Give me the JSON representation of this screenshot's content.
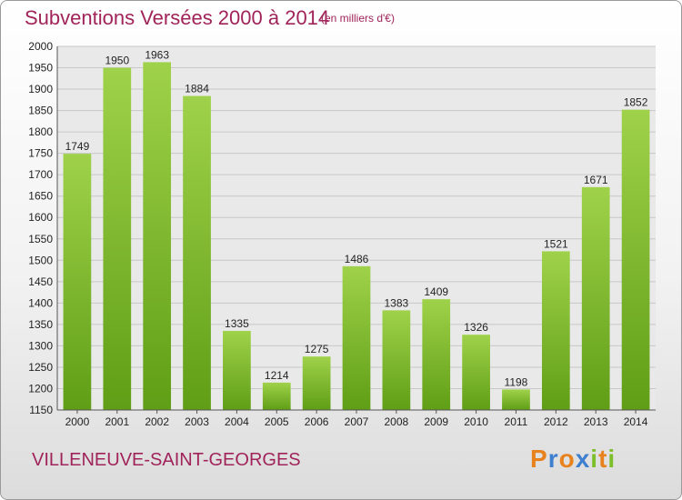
{
  "header": {
    "title": "Subventions Versées 2000 à 2014",
    "subtitle": "(en milliers d'€)"
  },
  "footer": {
    "commune": "VILLENEUVE-SAINT-GEORGES",
    "brand": {
      "letters": [
        "P",
        "r",
        "o",
        "x",
        "i",
        "t",
        "i"
      ],
      "colors": [
        "#e8821e",
        "#3f7fcf",
        "#e8821e",
        "#3f7fcf",
        "#7cbf2a",
        "#e8821e",
        "#7cbf2a"
      ]
    }
  },
  "colors": {
    "title": "#a0245a",
    "bar_light": "#9fd24a",
    "bar_dark": "#5f9e16",
    "grid": "#c8c8c8",
    "plot_background": "#e9e9e9"
  },
  "chart_data": {
    "type": "bar",
    "title": "Subventions Versées 2000 à 2014",
    "subtitle": "(en milliers d'€)",
    "categories": [
      "2000",
      "2001",
      "2002",
      "2003",
      "2004",
      "2005",
      "2006",
      "2007",
      "2008",
      "2009",
      "2010",
      "2011",
      "2012",
      "2013",
      "2014"
    ],
    "values": [
      1749,
      1950,
      1963,
      1884,
      1335,
      1214,
      1275,
      1486,
      1383,
      1409,
      1326,
      1198,
      1521,
      1671,
      1852
    ],
    "ylim": [
      1150,
      2000
    ],
    "yticks": [
      1150,
      1200,
      1250,
      1300,
      1350,
      1400,
      1450,
      1500,
      1550,
      1600,
      1650,
      1700,
      1750,
      1800,
      1850,
      1900,
      1950,
      2000
    ],
    "grid": true,
    "legend": "none"
  }
}
